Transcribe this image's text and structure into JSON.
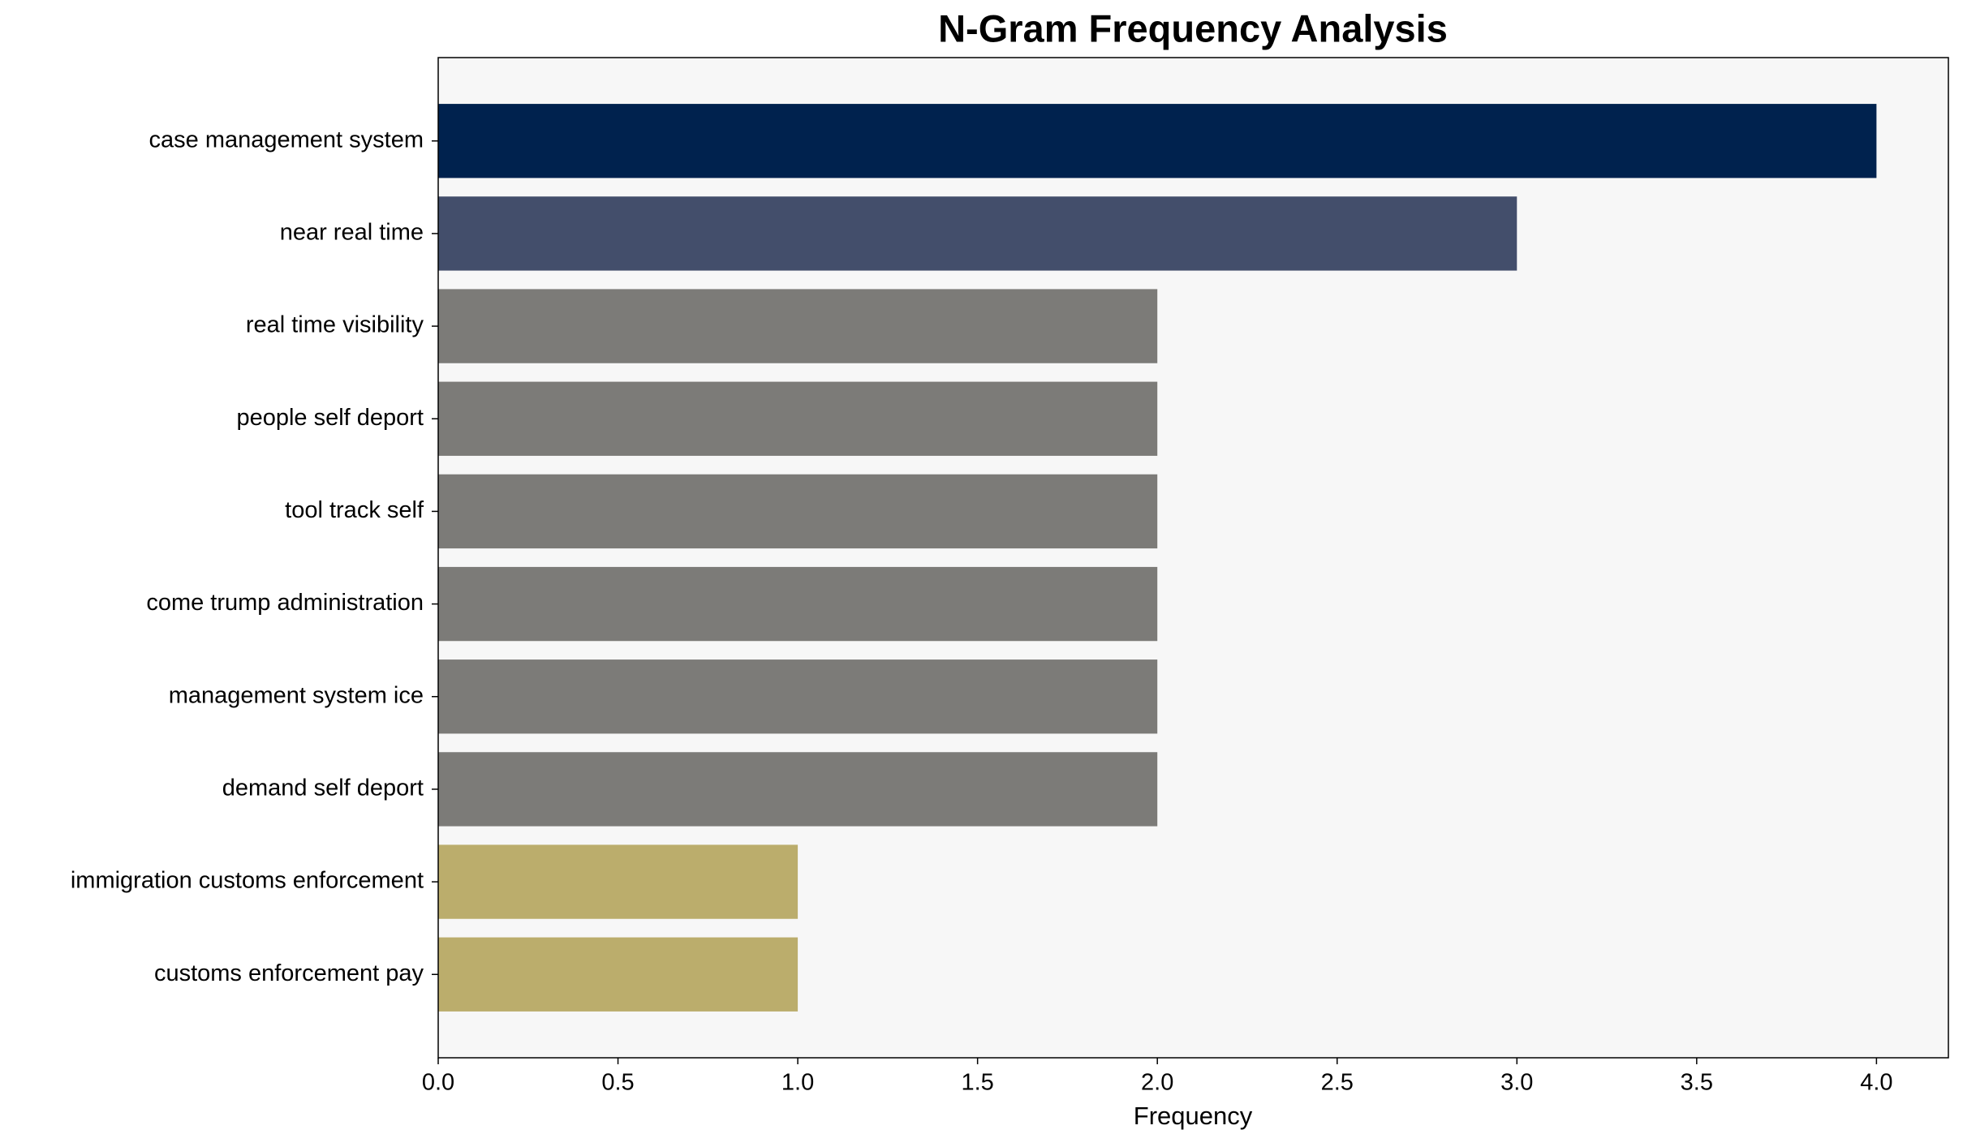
{
  "chart_data": {
    "type": "barh",
    "title": "N-Gram Frequency Analysis",
    "xlabel": "Frequency",
    "categories": [
      "case management system",
      "near real time",
      "real time visibility",
      "people self deport",
      "tool track self",
      "come trump administration",
      "management system ice",
      "demand self deport",
      "immigration customs enforcement",
      "customs enforcement pay"
    ],
    "values": [
      4,
      3,
      2,
      2,
      2,
      2,
      2,
      2,
      1,
      1
    ],
    "colors": [
      "#00224e",
      "#434e6b",
      "#7c7b78",
      "#7c7b78",
      "#7c7b78",
      "#7c7b78",
      "#7c7b78",
      "#7c7b78",
      "#bbad6c",
      "#bbad6c"
    ],
    "xlim": [
      0,
      4.2
    ],
    "xticks": [
      {
        "value": 0,
        "label": "0.0"
      },
      {
        "value": 0.5,
        "label": "0.5"
      },
      {
        "value": 1,
        "label": "1.0"
      },
      {
        "value": 1.5,
        "label": "1.5"
      },
      {
        "value": 2,
        "label": "2.0"
      },
      {
        "value": 2.5,
        "label": "2.5"
      },
      {
        "value": 3,
        "label": "3.0"
      },
      {
        "value": 3.5,
        "label": "3.5"
      },
      {
        "value": 4,
        "label": "4.0"
      }
    ],
    "background": "#f7f7f7"
  }
}
